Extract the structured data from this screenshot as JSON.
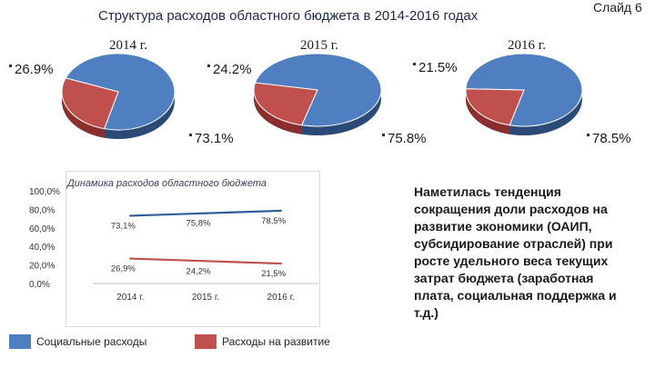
{
  "header": {
    "title": "Структура расходов областного бюджета в 2014-2016 годах",
    "slide_number": "Слайд 6"
  },
  "colors": {
    "social": "#4f7fc0",
    "social_side": "#2c4a78",
    "development": "#c0504d",
    "development_side": "#8a2f2d",
    "line": "#2e5c9a"
  },
  "chart_data": [
    {
      "type": "pie",
      "title": "2014 г.",
      "categories": [
        "Социальные расходы",
        "Расходы на развитие"
      ],
      "values": [
        73.1,
        26.9
      ],
      "labels": [
        "73.1%",
        "26.9%"
      ]
    },
    {
      "type": "pie",
      "title": "2015 г.",
      "categories": [
        "Социальные расходы",
        "Расходы на развитие"
      ],
      "values": [
        75.8,
        24.2
      ],
      "labels": [
        "75.8%",
        "24.2%"
      ]
    },
    {
      "type": "pie",
      "title": "2016 г.",
      "categories": [
        "Социальные расходы",
        "Расходы на развитие"
      ],
      "values": [
        78.5,
        21.5
      ],
      "labels": [
        "78.5%",
        "21.5%"
      ]
    },
    {
      "type": "line",
      "title": "Динамика расходов областного бюджета",
      "categories": [
        "2014 г.",
        "2015 г.",
        "2016 г."
      ],
      "series": [
        {
          "name": "Социальные расходы",
          "values": [
            73.1,
            75.8,
            78.5
          ],
          "labels": [
            "73,1%",
            "75,8%",
            "78,5%"
          ]
        },
        {
          "name": "Расходы на развитие",
          "values": [
            26.9,
            24.2,
            21.5
          ],
          "labels": [
            "26,9%",
            "24,2%",
            "21,5%"
          ]
        }
      ],
      "ylim": [
        0,
        100
      ],
      "yticks": [
        "0,0%",
        "20,0%",
        "40,0%",
        "60,0%",
        "80,0%",
        "100,0%"
      ],
      "grid": false,
      "legend_position": "bottom"
    }
  ],
  "legend": {
    "social": "Социальные расходы",
    "development": "Расходы на развитие"
  },
  "note": {
    "lines": [
      "Наметилась тенденция",
      "сокращения доли расходов  на",
      "развитие экономики (ОАИП,",
      "субсидирование отраслей) при",
      "росте удельного веса текущих",
      "затрат бюджета (заработная",
      "плата, социальная поддержка и",
      "т.д.)"
    ]
  }
}
